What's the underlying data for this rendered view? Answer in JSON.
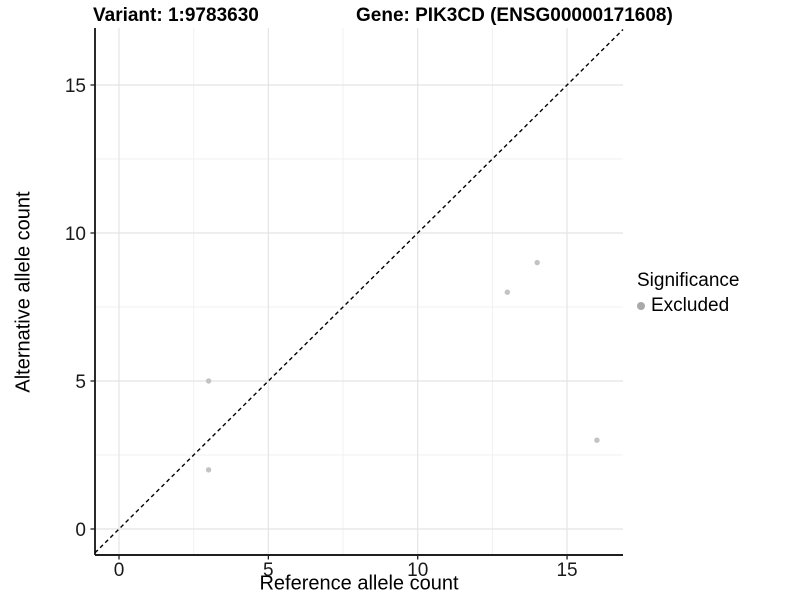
{
  "chart_data": {
    "type": "scatter",
    "titles": {
      "variant": "Variant: 1:9783630",
      "gene": "Gene: PIK3CD (ENSG00000171608)"
    },
    "xlabel": "Reference allele count",
    "ylabel": "Alternative allele count",
    "x_ticks": [
      0,
      5,
      10,
      15
    ],
    "y_ticks": [
      0,
      5,
      10,
      15
    ],
    "x_minor_ticks": [
      2.5,
      7.5,
      12.5
    ],
    "y_minor_ticks": [
      2.5,
      7.5,
      12.5
    ],
    "xlim": [
      -0.8,
      16.9
    ],
    "ylim": [
      -1.0,
      16.9
    ],
    "grid": "major+minor",
    "identity_line": {
      "style": "dashed",
      "color": "#000000"
    },
    "series": [
      {
        "name": "Excluded",
        "color": "#c3c3c3",
        "points": [
          {
            "x": 3,
            "y": 5
          },
          {
            "x": 3,
            "y": 2
          },
          {
            "x": 13,
            "y": 8
          },
          {
            "x": 14,
            "y": 9
          },
          {
            "x": 16,
            "y": 3
          }
        ]
      }
    ],
    "legend": {
      "title": "Significance",
      "position": "right",
      "entries": [
        {
          "label": "Excluded",
          "color": "#a9a9a9"
        }
      ]
    },
    "colors": {
      "major_grid": "#e4e4e4",
      "minor_grid": "#f1f1f1",
      "axis_line": "#1f1f1f",
      "tick_text": "#1a1a1a"
    }
  }
}
